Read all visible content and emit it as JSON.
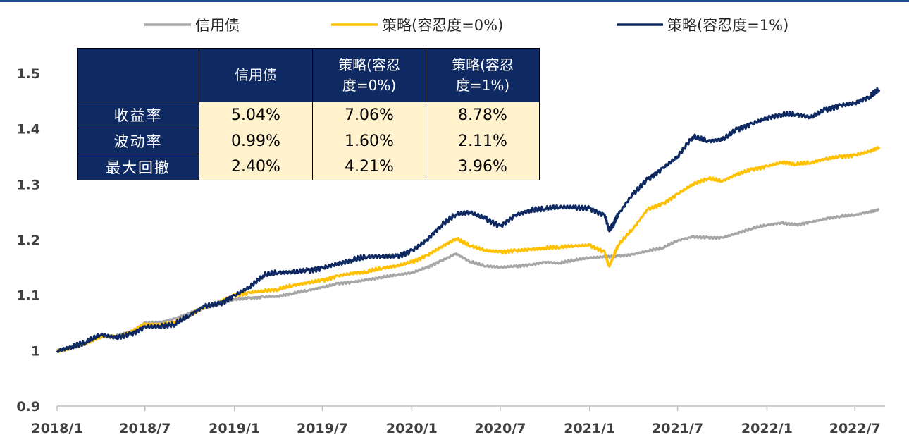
{
  "chart_data": {
    "type": "line",
    "ylim": [
      0.9,
      1.5
    ],
    "yticks": [
      "0.9",
      "1",
      "1.1",
      "1.2",
      "1.3",
      "1.4",
      "1.5"
    ],
    "ytick_values": [
      0.9,
      1.0,
      1.1,
      1.2,
      1.3,
      1.4,
      1.5
    ],
    "xlim": [
      "2018-01",
      "2022-09"
    ],
    "xticks": [
      "2018/1",
      "2018/7",
      "2019/1",
      "2019/7",
      "2020/1",
      "2020/7",
      "2021/1",
      "2021/7",
      "2022/1",
      "2022/7"
    ],
    "xtick_values": [
      "2018-01",
      "2018-07",
      "2019-01",
      "2019-07",
      "2020-01",
      "2020-07",
      "2021-01",
      "2021-07",
      "2022-01",
      "2022-07"
    ],
    "legend_position": "top",
    "series": [
      {
        "name": "信用债",
        "color": "#a6a6a6",
        "points": [
          [
            "2018-01-01",
            1.0
          ],
          [
            "2018-02-01",
            1.006
          ],
          [
            "2018-03-01",
            1.013
          ],
          [
            "2018-04-01",
            1.025
          ],
          [
            "2018-05-01",
            1.026
          ],
          [
            "2018-06-01",
            1.033
          ],
          [
            "2018-07-01",
            1.05
          ],
          [
            "2018-08-01",
            1.051
          ],
          [
            "2018-09-01",
            1.058
          ],
          [
            "2018-10-01",
            1.068
          ],
          [
            "2018-11-01",
            1.077
          ],
          [
            "2018-12-01",
            1.083
          ],
          [
            "2019-01-01",
            1.092
          ],
          [
            "2019-02-01",
            1.095
          ],
          [
            "2019-03-01",
            1.097
          ],
          [
            "2019-04-01",
            1.098
          ],
          [
            "2019-05-01",
            1.103
          ],
          [
            "2019-06-01",
            1.108
          ],
          [
            "2019-07-01",
            1.114
          ],
          [
            "2019-08-01",
            1.121
          ],
          [
            "2019-09-01",
            1.124
          ],
          [
            "2019-10-01",
            1.128
          ],
          [
            "2019-11-01",
            1.132
          ],
          [
            "2019-12-01",
            1.136
          ],
          [
            "2020-01-01",
            1.14
          ],
          [
            "2020-02-01",
            1.15
          ],
          [
            "2020-03-01",
            1.162
          ],
          [
            "2020-04-01",
            1.175
          ],
          [
            "2020-05-01",
            1.16
          ],
          [
            "2020-06-01",
            1.152
          ],
          [
            "2020-07-01",
            1.15
          ],
          [
            "2020-08-01",
            1.152
          ],
          [
            "2020-09-01",
            1.155
          ],
          [
            "2020-10-01",
            1.16
          ],
          [
            "2020-11-01",
            1.158
          ],
          [
            "2020-12-01",
            1.163
          ],
          [
            "2021-01-01",
            1.167
          ],
          [
            "2021-02-01",
            1.169
          ],
          [
            "2021-03-01",
            1.171
          ],
          [
            "2021-04-01",
            1.174
          ],
          [
            "2021-05-01",
            1.18
          ],
          [
            "2021-06-01",
            1.185
          ],
          [
            "2021-07-01",
            1.198
          ],
          [
            "2021-08-01",
            1.205
          ],
          [
            "2021-09-01",
            1.204
          ],
          [
            "2021-10-01",
            1.204
          ],
          [
            "2021-11-01",
            1.212
          ],
          [
            "2021-12-01",
            1.22
          ],
          [
            "2022-01-01",
            1.226
          ],
          [
            "2022-02-01",
            1.23
          ],
          [
            "2022-03-01",
            1.227
          ],
          [
            "2022-04-01",
            1.232
          ],
          [
            "2022-05-01",
            1.238
          ],
          [
            "2022-06-01",
            1.242
          ],
          [
            "2022-07-01",
            1.244
          ],
          [
            "2022-08-01",
            1.25
          ],
          [
            "2022-08-20",
            1.254
          ]
        ]
      },
      {
        "name": "策略(容忍度=0%)",
        "color": "#ffc000",
        "points": [
          [
            "2018-01-01",
            1.0
          ],
          [
            "2018-02-01",
            1.006
          ],
          [
            "2018-03-01",
            1.013
          ],
          [
            "2018-04-01",
            1.025
          ],
          [
            "2018-05-01",
            1.024
          ],
          [
            "2018-06-01",
            1.033
          ],
          [
            "2018-07-01",
            1.048
          ],
          [
            "2018-08-01",
            1.047
          ],
          [
            "2018-09-01",
            1.052
          ],
          [
            "2018-10-01",
            1.063
          ],
          [
            "2018-11-01",
            1.078
          ],
          [
            "2018-12-01",
            1.087
          ],
          [
            "2019-01-01",
            1.1
          ],
          [
            "2019-02-01",
            1.105
          ],
          [
            "2019-03-01",
            1.108
          ],
          [
            "2019-04-01",
            1.11
          ],
          [
            "2019-05-01",
            1.117
          ],
          [
            "2019-06-01",
            1.122
          ],
          [
            "2019-07-01",
            1.127
          ],
          [
            "2019-08-01",
            1.135
          ],
          [
            "2019-09-01",
            1.14
          ],
          [
            "2019-10-01",
            1.142
          ],
          [
            "2019-11-01",
            1.148
          ],
          [
            "2019-12-01",
            1.152
          ],
          [
            "2020-01-01",
            1.16
          ],
          [
            "2020-02-01",
            1.172
          ],
          [
            "2020-03-01",
            1.187
          ],
          [
            "2020-04-01",
            1.202
          ],
          [
            "2020-05-01",
            1.188
          ],
          [
            "2020-06-01",
            1.18
          ],
          [
            "2020-07-01",
            1.178
          ],
          [
            "2020-08-01",
            1.181
          ],
          [
            "2020-09-01",
            1.183
          ],
          [
            "2020-10-01",
            1.185
          ],
          [
            "2020-11-01",
            1.186
          ],
          [
            "2020-12-01",
            1.188
          ],
          [
            "2021-01-01",
            1.19
          ],
          [
            "2021-02-01",
            1.178
          ],
          [
            "2021-02-10",
            1.152
          ],
          [
            "2021-02-20",
            1.172
          ],
          [
            "2021-03-01",
            1.19
          ],
          [
            "2021-04-01",
            1.22
          ],
          [
            "2021-05-01",
            1.255
          ],
          [
            "2021-06-01",
            1.265
          ],
          [
            "2021-07-01",
            1.283
          ],
          [
            "2021-08-01",
            1.3
          ],
          [
            "2021-09-01",
            1.31
          ],
          [
            "2021-10-01",
            1.305
          ],
          [
            "2021-11-01",
            1.318
          ],
          [
            "2021-12-01",
            1.327
          ],
          [
            "2022-01-01",
            1.333
          ],
          [
            "2022-02-01",
            1.34
          ],
          [
            "2022-03-01",
            1.336
          ],
          [
            "2022-04-01",
            1.338
          ],
          [
            "2022-05-01",
            1.345
          ],
          [
            "2022-06-01",
            1.35
          ],
          [
            "2022-07-01",
            1.353
          ],
          [
            "2022-08-01",
            1.36
          ],
          [
            "2022-08-20",
            1.367
          ]
        ]
      },
      {
        "name": "策略(容忍度=1%)",
        "color": "#0f2a63",
        "points": [
          [
            "2018-01-01",
            1.0
          ],
          [
            "2018-02-01",
            1.007
          ],
          [
            "2018-03-01",
            1.014
          ],
          [
            "2018-04-01",
            1.028
          ],
          [
            "2018-05-01",
            1.023
          ],
          [
            "2018-06-01",
            1.03
          ],
          [
            "2018-07-01",
            1.044
          ],
          [
            "2018-08-01",
            1.044
          ],
          [
            "2018-09-01",
            1.047
          ],
          [
            "2018-10-01",
            1.063
          ],
          [
            "2018-11-01",
            1.08
          ],
          [
            "2018-12-01",
            1.085
          ],
          [
            "2019-01-01",
            1.1
          ],
          [
            "2019-02-01",
            1.115
          ],
          [
            "2019-03-01",
            1.135
          ],
          [
            "2019-04-01",
            1.14
          ],
          [
            "2019-05-01",
            1.141
          ],
          [
            "2019-06-01",
            1.145
          ],
          [
            "2019-07-01",
            1.15
          ],
          [
            "2019-08-01",
            1.157
          ],
          [
            "2019-09-01",
            1.163
          ],
          [
            "2019-10-01",
            1.168
          ],
          [
            "2019-11-01",
            1.169
          ],
          [
            "2019-12-01",
            1.17
          ],
          [
            "2020-01-01",
            1.181
          ],
          [
            "2020-02-01",
            1.2
          ],
          [
            "2020-03-01",
            1.225
          ],
          [
            "2020-04-01",
            1.245
          ],
          [
            "2020-05-01",
            1.248
          ],
          [
            "2020-06-01",
            1.238
          ],
          [
            "2020-07-01",
            1.225
          ],
          [
            "2020-08-01",
            1.245
          ],
          [
            "2020-09-01",
            1.253
          ],
          [
            "2020-10-01",
            1.255
          ],
          [
            "2020-11-01",
            1.258
          ],
          [
            "2020-12-01",
            1.258
          ],
          [
            "2021-01-01",
            1.257
          ],
          [
            "2021-02-01",
            1.245
          ],
          [
            "2021-02-10",
            1.218
          ],
          [
            "2021-02-20",
            1.228
          ],
          [
            "2021-03-01",
            1.245
          ],
          [
            "2021-04-01",
            1.283
          ],
          [
            "2021-05-01",
            1.31
          ],
          [
            "2021-06-01",
            1.33
          ],
          [
            "2021-07-01",
            1.35
          ],
          [
            "2021-08-01",
            1.385
          ],
          [
            "2021-09-01",
            1.377
          ],
          [
            "2021-10-01",
            1.38
          ],
          [
            "2021-11-01",
            1.4
          ],
          [
            "2021-12-01",
            1.41
          ],
          [
            "2022-01-01",
            1.42
          ],
          [
            "2022-02-01",
            1.425
          ],
          [
            "2022-03-01",
            1.425
          ],
          [
            "2022-04-01",
            1.42
          ],
          [
            "2022-05-01",
            1.435
          ],
          [
            "2022-06-01",
            1.443
          ],
          [
            "2022-07-01",
            1.447
          ],
          [
            "2022-08-01",
            1.458
          ],
          [
            "2022-08-20",
            1.47
          ]
        ]
      }
    ],
    "table": {
      "headers": [
        "",
        "信用债",
        "策略(容忍度=0%)",
        "策略(容忍度=1%)"
      ],
      "rows": [
        {
          "label": "收益率",
          "values": [
            "5.04%",
            "7.06%",
            "8.78%"
          ]
        },
        {
          "label": "波动率",
          "values": [
            "0.99%",
            "1.60%",
            "2.11%"
          ]
        },
        {
          "label": "最大回撤",
          "values": [
            "2.40%",
            "4.21%",
            "3.96%"
          ]
        }
      ]
    }
  },
  "table_header": {
    "col1": "信用债",
    "col2_line1": "策略(容忍",
    "col2_line2": "度=0%)",
    "col3_line1": "策略(容忍",
    "col3_line2": "度=1%)"
  }
}
